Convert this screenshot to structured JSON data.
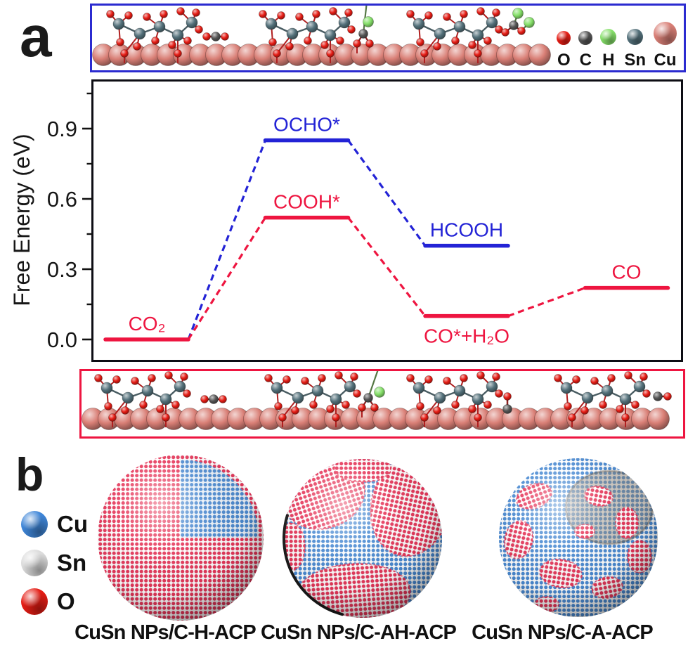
{
  "figure": {
    "panel_a_label": "a",
    "panel_b_label": "b"
  },
  "atom_legend": {
    "items": [
      {
        "symbol": "O",
        "color": "#e51c14",
        "size": "small"
      },
      {
        "symbol": "C",
        "color": "#555555",
        "size": "small"
      },
      {
        "symbol": "H",
        "color": "#86e06a",
        "size": "medium"
      },
      {
        "symbol": "Sn",
        "color": "#53707a",
        "size": "medium"
      },
      {
        "symbol": "Cu",
        "color": "#d97f76",
        "size": "large"
      }
    ]
  },
  "atom_colors": {
    "O": "#e51c14",
    "C": "#555555",
    "H": "#86e06a",
    "Sn": "#53707a",
    "Cu": "#d97f76"
  },
  "structure_boxes": {
    "top": {
      "border_color": "#2b2bd0"
    },
    "bottom": {
      "border_color": "#ee1540"
    }
  },
  "chart_data": {
    "type": "line",
    "subtype": "reaction-free-energy-level-diagram",
    "title": "",
    "xlabel": "",
    "ylabel": "Free Energy (eV)",
    "ylim": [
      -0.1,
      1.11
    ],
    "yticks": [
      0.0,
      0.3,
      0.6,
      0.9
    ],
    "minor_yticks": [
      0.15,
      0.45,
      0.75,
      1.05
    ],
    "grid": false,
    "legend_position": "none",
    "series": [
      {
        "name": "HCOOH pathway",
        "color": "#2323d6",
        "style": "solid levels with dashed connectors",
        "levels": [
          {
            "stage": 0,
            "label": "CO₂",
            "value": 0.0,
            "shared": true
          },
          {
            "stage": 1,
            "label": "OCHO*",
            "value": 0.85
          },
          {
            "stage": 2,
            "label": "HCOOH",
            "value": 0.4
          }
        ]
      },
      {
        "name": "CO pathway",
        "color": "#ee1540",
        "style": "solid levels with dashed connectors",
        "levels": [
          {
            "stage": 0,
            "label": "CO₂",
            "value": 0.0
          },
          {
            "stage": 1,
            "label": "COOH*",
            "value": 0.52
          },
          {
            "stage": 2,
            "label": "CO*+H₂O",
            "value": 0.1,
            "label_pos": "below"
          },
          {
            "stage": 3,
            "label": "CO",
            "value": 0.22
          }
        ]
      }
    ]
  },
  "panel_b": {
    "shell_dot_color": "#e6375a",
    "core_dot_color": "#4a8ad2",
    "legend": [
      {
        "symbol": "Cu",
        "color": "#3f86d8"
      },
      {
        "symbol": "Sn",
        "color": "#dcdcdc"
      },
      {
        "symbol": "O",
        "color": "#e51c14"
      }
    ],
    "particles": [
      {
        "caption": "CuSn NPs/C-H-ACP",
        "texture": "cutaway"
      },
      {
        "caption": "CuSn NPs/C-AH-ACP",
        "texture": "patchy"
      },
      {
        "caption": "CuSn NPs/C-A-ACP",
        "texture": "blue-patches"
      }
    ]
  }
}
